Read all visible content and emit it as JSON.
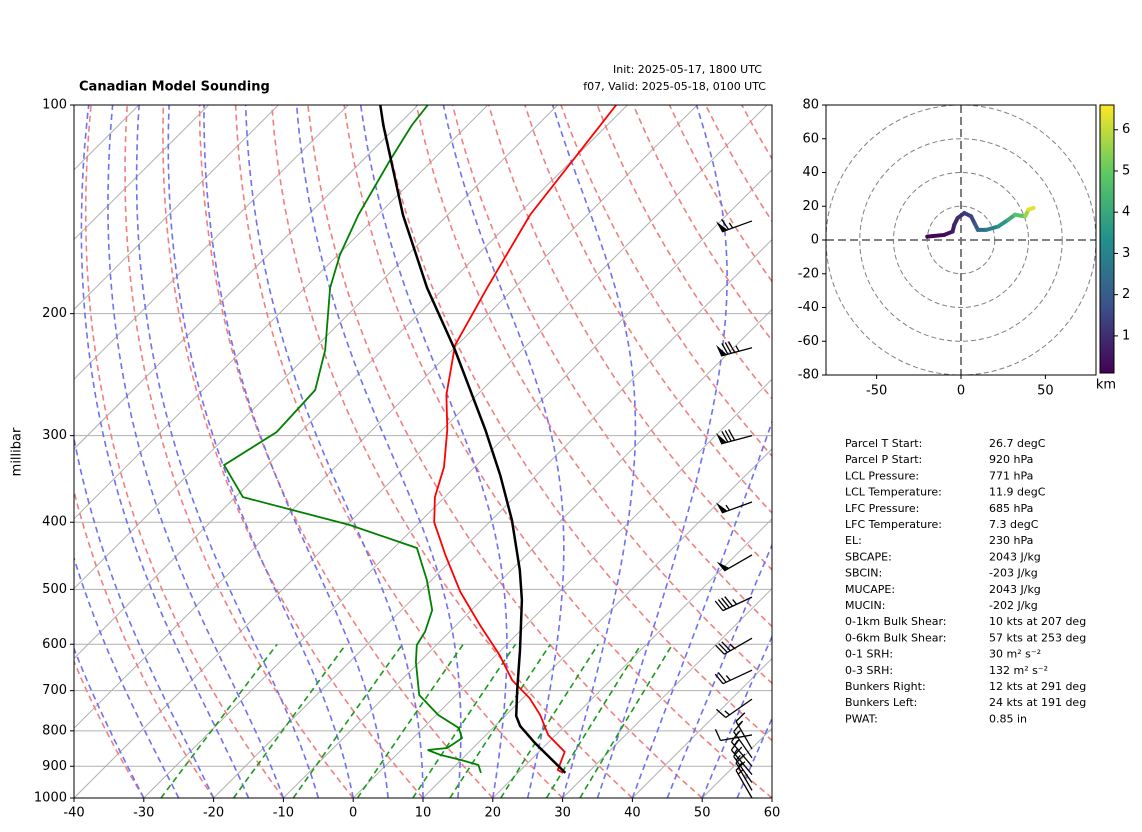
{
  "chart_data": {
    "type": "skew-t",
    "title": "Canadian Model Sounding",
    "init_text": "Init: 2025-05-17, 1800 UTC",
    "valid_text": "f07, Valid: 2025-05-18, 0100 UTC",
    "ylabel": "millibar",
    "xlim": [
      -40,
      60
    ],
    "xticks": [
      -40,
      -30,
      -20,
      -10,
      0,
      10,
      20,
      30,
      40,
      50,
      60
    ],
    "ylim": [
      1000,
      100
    ],
    "yticks": [
      100,
      200,
      300,
      400,
      500,
      600,
      700,
      800,
      900,
      1000
    ],
    "log_scale": true,
    "grid": true,
    "series": [
      {
        "name": "Temperature",
        "color": "#ff0000",
        "pressure": [
          100,
          144.1,
          183.6,
          222,
          262,
          294,
          333,
          368,
          400,
          446,
          504,
          563,
          622,
          676,
          718,
          759,
          811,
          858,
          911,
          920
        ],
        "temperature": [
          -61.6,
          -58.2,
          -53.9,
          -50.3,
          -44.4,
          -39.3,
          -34.4,
          -31.4,
          -27.9,
          -21.6,
          -14.2,
          -6.6,
          0.5,
          5.9,
          11.0,
          14.9,
          18.9,
          23.7,
          25.3,
          26.5
        ]
      },
      {
        "name": "Dewpoint",
        "color": "#008000",
        "pressure": [
          100,
          106.9,
          120.1,
          144.1,
          164.6,
          183.6,
          225.7,
          257.8,
          296.4,
          330.8,
          368,
          403.7,
          435.7,
          484.5,
          535.6,
          575.9,
          601.5,
          636.5,
          710.3,
          759,
          792.5,
          819.5,
          847,
          852.7,
          866.5,
          881.8,
          896.1,
          920
        ],
        "temperature": [
          -88.6,
          -88.0,
          -86.1,
          -82.8,
          -79.7,
          -76.4,
          -68.2,
          -63.9,
          -63.4,
          -66.2,
          -58.9,
          -39.6,
          -26.7,
          -20.7,
          -15.6,
          -13.5,
          -12.8,
          -10.5,
          -5.3,
          0.3,
          5.1,
          7.0,
          6.3,
          3.8,
          6.3,
          10.1,
          13.2,
          14.7
        ]
      },
      {
        "name": "Parcel",
        "color": "#000000",
        "pressure": [
          100,
          106.9,
          122.1,
          144.1,
          183.6,
          225.7,
          294.3,
          342,
          397,
          468.8,
          517.9,
          611.7,
          698.2,
          761.3,
          787.3,
          833.4,
          920
        ],
        "temperature": [
          -95.4,
          -92.1,
          -85.1,
          -76.4,
          -62.5,
          -49.6,
          -33.8,
          -25.2,
          -17.1,
          -8.8,
          -4.2,
          2.7,
          8.0,
          11.6,
          13.6,
          18.2,
          26.8
        ]
      }
    ],
    "wind_barbs": {
      "pressure": [
        147,
        224,
        300,
        374,
        446,
        513,
        588,
        654,
        720,
        811,
        850,
        875,
        900,
        925,
        950,
        975,
        1000
      ],
      "speed": [
        65,
        85,
        80,
        55,
        50,
        45,
        35,
        25,
        15,
        10,
        15,
        15,
        15,
        15,
        15,
        15,
        15
      ],
      "direction": [
        250,
        255,
        255,
        250,
        240,
        245,
        240,
        245,
        235,
        260,
        330,
        325,
        320,
        320,
        325,
        330,
        330
      ]
    },
    "hodograph": {
      "u": [
        -20,
        -10,
        -5,
        -4,
        -2,
        2,
        6,
        8,
        10,
        15,
        22,
        28,
        32,
        38,
        40,
        43
      ],
      "v": [
        2,
        3,
        5,
        9,
        13,
        16,
        14,
        10,
        6,
        6,
        8,
        12,
        15,
        14,
        18,
        19
      ],
      "height": [
        0.1,
        0.3,
        0.5,
        0.7,
        0.9,
        1.1,
        1.3,
        1.6,
        2.0,
        2.6,
        3.2,
        3.8,
        4.4,
        5.2,
        6.0,
        6.6
      ],
      "xlim": [
        -80,
        80
      ],
      "xticks": [
        -50,
        0,
        50
      ],
      "ylim": [
        -80,
        80
      ],
      "yticks": [
        -80,
        -60,
        -40,
        -20,
        0,
        20,
        40,
        60,
        80
      ],
      "colorbar": {
        "label": "km",
        "lim": [
          0.1,
          6.6
        ],
        "ticks": [
          1,
          2,
          3,
          4,
          5,
          6
        ]
      }
    },
    "parameters": [
      {
        "label": "Parcel T Start:",
        "value": "26.7 degC"
      },
      {
        "label": "Parcel P Start:",
        "value": "920 hPa"
      },
      {
        "label": "LCL Pressure:",
        "value": "771 hPa"
      },
      {
        "label": "LCL Temperature:",
        "value": "11.9 degC"
      },
      {
        "label": "LFC Pressure:",
        "value": "685 hPa"
      },
      {
        "label": "LFC Temperature:",
        "value": "7.3 degC"
      },
      {
        "label": "EL:",
        "value": "230 hPa"
      },
      {
        "label": "SBCAPE:",
        "value": "2043 J/kg"
      },
      {
        "label": "SBCIN:",
        "value": "-203 J/kg"
      },
      {
        "label": "MUCAPE:",
        "value": "2043 J/kg"
      },
      {
        "label": "MUCIN:",
        "value": "-202 J/kg"
      },
      {
        "label": "0-1km Bulk Shear:",
        "value": "10 kts at 207 deg"
      },
      {
        "label": "0-6km Bulk Shear:",
        "value": "57 kts at 253 deg"
      },
      {
        "label": "0-1 SRH:",
        "value": "30 m² s⁻²"
      },
      {
        "label": "0-3 SRH:",
        "value": "132 m² s⁻²"
      },
      {
        "label": "Bunkers Right:",
        "value": "12 kts at 291 deg"
      },
      {
        "label": "Bunkers Left:",
        "value": "24 kts at 191 deg"
      },
      {
        "label": "PWAT:",
        "value": "0.85 in"
      }
    ]
  }
}
